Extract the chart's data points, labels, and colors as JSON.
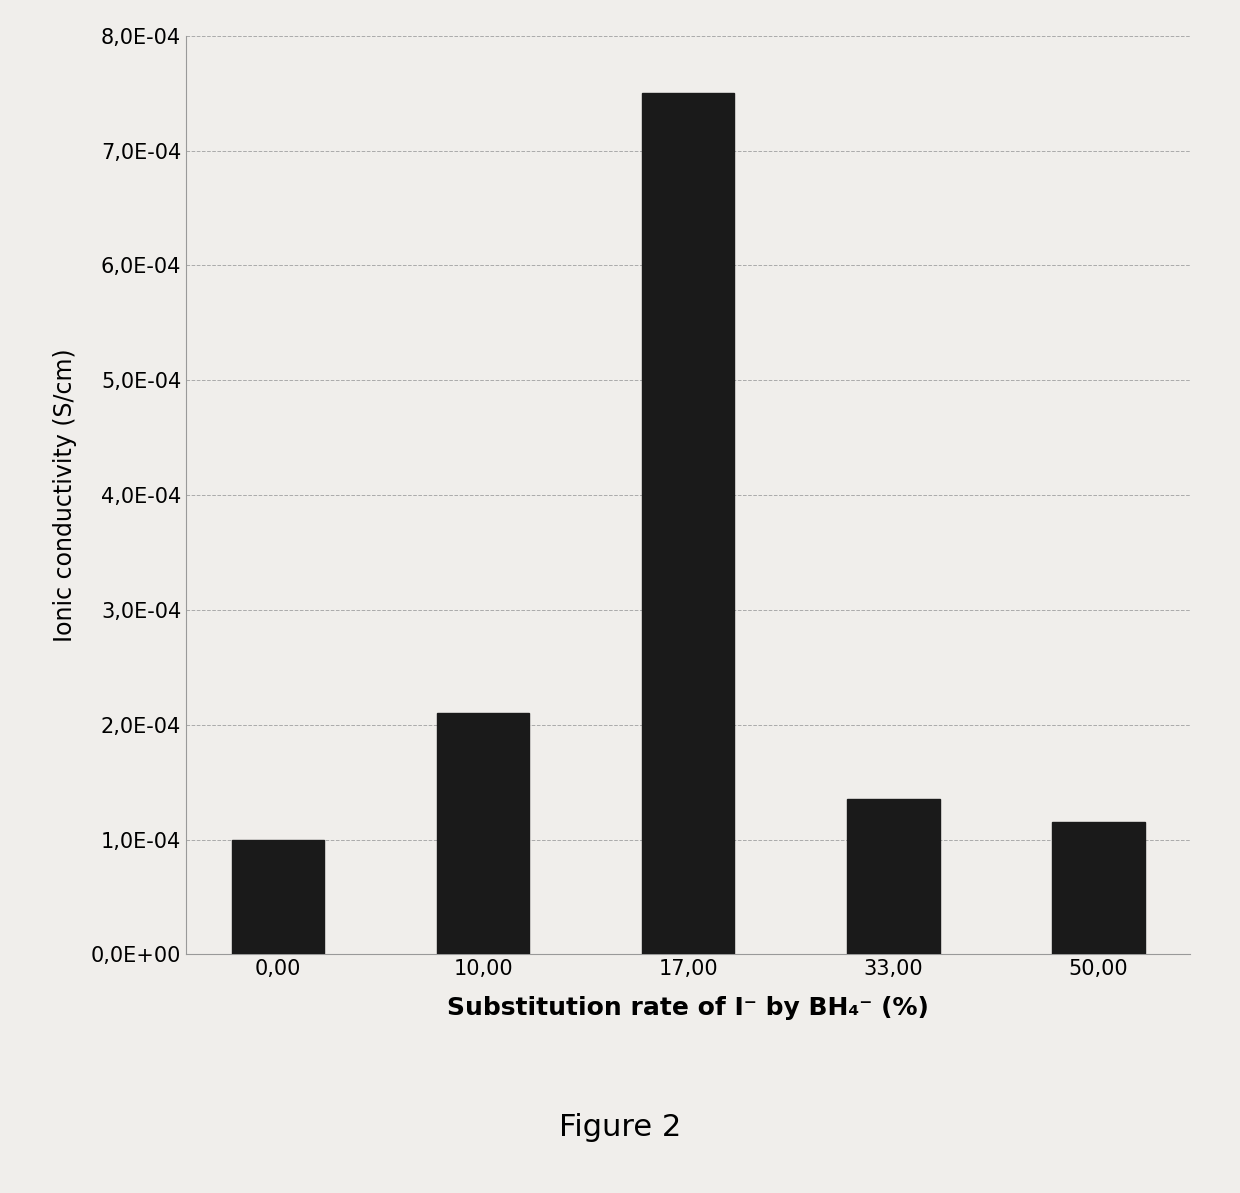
{
  "categories": [
    "0,00",
    "10,00",
    "17,00",
    "33,00",
    "50,00"
  ],
  "values": [
    0.0001,
    0.00021,
    0.00075,
    0.000135,
    0.000115
  ],
  "bar_color": "#1a1a1a",
  "ylabel": "Ionic conductivity (S/cm)",
  "figure_label": "Figure 2",
  "ylim": [
    0,
    0.0008
  ],
  "yticks": [
    0.0,
    0.0001,
    0.0002,
    0.0003,
    0.0004,
    0.0005,
    0.0006,
    0.0007,
    0.0008
  ],
  "ytick_labels": [
    "0,0E+00",
    "1,0E-04",
    "2,0E-04",
    "3,0E-04",
    "4,0E-04",
    "5,0E-04",
    "6,0E-04",
    "7,0E-04",
    "8,0E-04"
  ],
  "background_color": "#f0eeeb",
  "grid_color": "#aaaaaa",
  "bar_width": 0.45,
  "ylabel_fontsize": 17,
  "xlabel_fontsize": 18,
  "tick_fontsize": 15,
  "figure_label_fontsize": 22
}
